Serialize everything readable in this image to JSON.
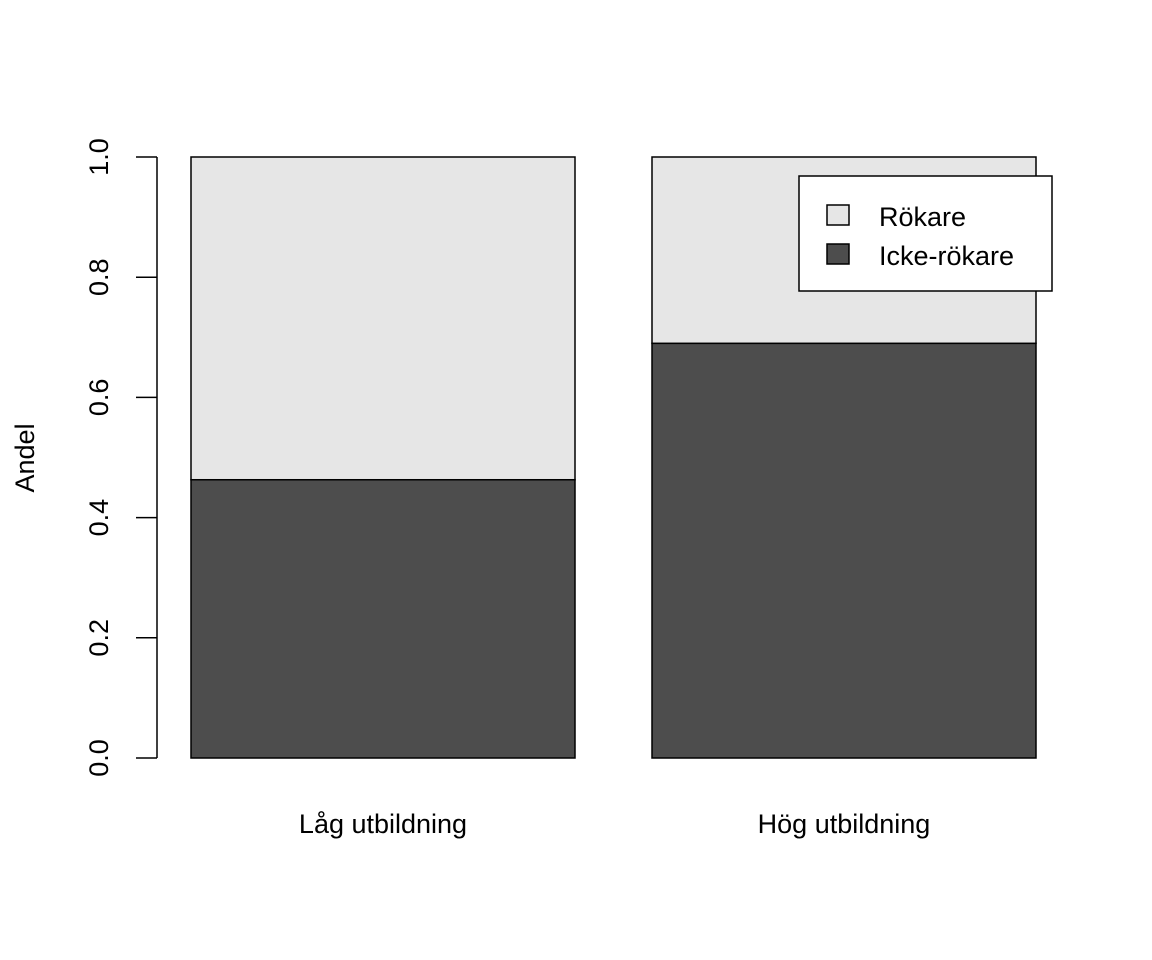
{
  "chart_data": {
    "type": "bar",
    "stacked": true,
    "categories": [
      "Låg utbildning",
      "Hög utbildning"
    ],
    "series": [
      {
        "name": "Icke-rökare",
        "values": [
          0.463,
          0.69
        ],
        "color": "#4d4d4d"
      },
      {
        "name": "Rökare",
        "values": [
          0.537,
          0.31
        ],
        "color": "#e6e6e6"
      }
    ],
    "ylabel": "Andel",
    "xlabel": "",
    "ylim": [
      0,
      1
    ],
    "yticks": [
      "0.0",
      "0.2",
      "0.4",
      "0.6",
      "0.8",
      "1.0"
    ],
    "legend": {
      "position": "top-right",
      "entries": [
        {
          "label": "Rökare",
          "color": "#e6e6e6"
        },
        {
          "label": "Icke-rökare",
          "color": "#4d4d4d"
        }
      ]
    },
    "grid": false
  }
}
